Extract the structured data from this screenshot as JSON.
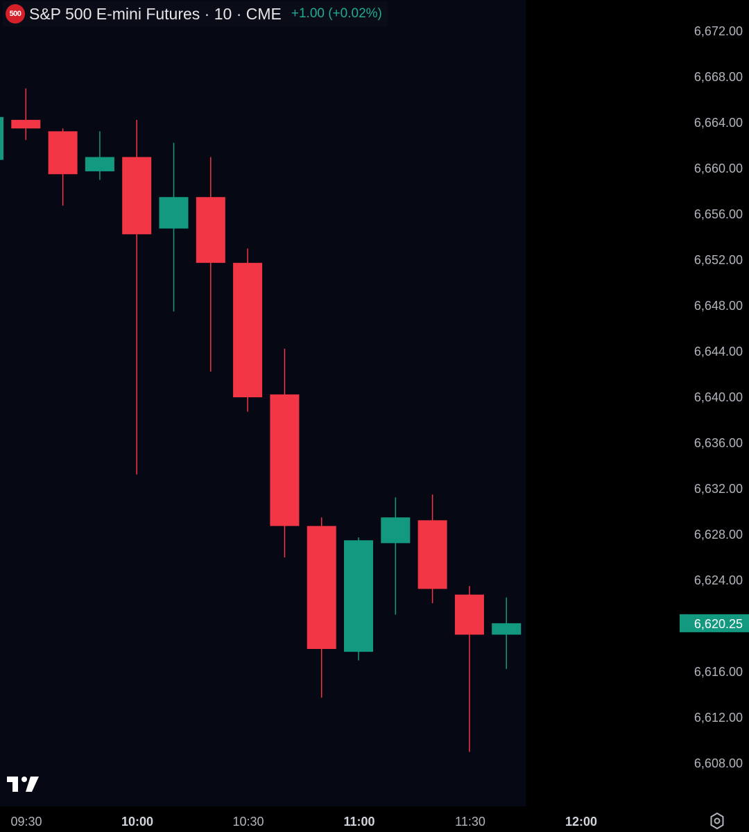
{
  "header": {
    "symbol_badge": "500",
    "title": "S&P 500 E-mini Futures · 10 · CME",
    "change": "+1.00 (+0.02%)"
  },
  "colors": {
    "up": "#12997f",
    "down": "#f23645",
    "background": "#060914",
    "axis_text": "#b2b5be",
    "last_price_badge": "#12997f"
  },
  "icons": {
    "logo": "tradingview-logo",
    "settings": "gear-icon"
  },
  "chart_data": {
    "type": "candlestick",
    "interval": "10",
    "ylim": [
      6604,
      6674
    ],
    "y_ticks": [
      "6,672.00",
      "6,668.00",
      "6,664.00",
      "6,660.00",
      "6,656.00",
      "6,652.00",
      "6,648.00",
      "6,644.00",
      "6,640.00",
      "6,636.00",
      "6,632.00",
      "6,628.00",
      "6,624.00",
      "6,616.00",
      "6,612.00",
      "6,608.00"
    ],
    "y_tick_values": [
      6672,
      6668,
      6664,
      6660,
      6656,
      6652,
      6648,
      6644,
      6640,
      6636,
      6632,
      6628,
      6624,
      6616,
      6612,
      6608
    ],
    "x_ticks": [
      {
        "label": "09:30",
        "bold": false
      },
      {
        "label": "10:00",
        "bold": true
      },
      {
        "label": "10:30",
        "bold": false
      },
      {
        "label": "11:00",
        "bold": true
      },
      {
        "label": "11:30",
        "bold": false
      },
      {
        "label": "12:00",
        "bold": true
      }
    ],
    "last_price": "6,620.25",
    "last_price_value": 6620.25,
    "candles": [
      {
        "time": "09:20",
        "open": 6660.75,
        "high": 6664.5,
        "low": 6659.75,
        "close": 6664.5
      },
      {
        "time": "09:30",
        "open": 6664.25,
        "high": 6667.0,
        "low": 6662.5,
        "close": 6663.5
      },
      {
        "time": "09:40",
        "open": 6663.25,
        "high": 6663.5,
        "low": 6656.75,
        "close": 6659.5
      },
      {
        "time": "09:50",
        "open": 6659.75,
        "high": 6663.25,
        "low": 6659.0,
        "close": 6661.0
      },
      {
        "time": "10:00",
        "open": 6661.0,
        "high": 6664.25,
        "low": 6633.25,
        "close": 6654.25
      },
      {
        "time": "10:10",
        "open": 6654.75,
        "high": 6662.25,
        "low": 6647.5,
        "close": 6657.5
      },
      {
        "time": "10:20",
        "open": 6657.5,
        "high": 6661.0,
        "low": 6642.25,
        "close": 6651.75
      },
      {
        "time": "10:30",
        "open": 6651.75,
        "high": 6653.0,
        "low": 6638.75,
        "close": 6640.0
      },
      {
        "time": "10:40",
        "open": 6640.25,
        "high": 6644.25,
        "low": 6626.0,
        "close": 6628.75
      },
      {
        "time": "10:50",
        "open": 6628.75,
        "high": 6629.5,
        "low": 6613.75,
        "close": 6618.0
      },
      {
        "time": "11:00",
        "open": 6617.75,
        "high": 6627.75,
        "low": 6617.0,
        "close": 6627.5
      },
      {
        "time": "11:10",
        "open": 6627.25,
        "high": 6631.25,
        "low": 6621.0,
        "close": 6629.5
      },
      {
        "time": "11:20",
        "open": 6629.25,
        "high": 6631.5,
        "low": 6622.0,
        "close": 6623.25
      },
      {
        "time": "11:30",
        "open": 6622.75,
        "high": 6623.5,
        "low": 6609.0,
        "close": 6619.25
      },
      {
        "time": "11:40",
        "open": 6619.25,
        "high": 6622.5,
        "low": 6616.25,
        "close": 6620.25
      }
    ]
  }
}
